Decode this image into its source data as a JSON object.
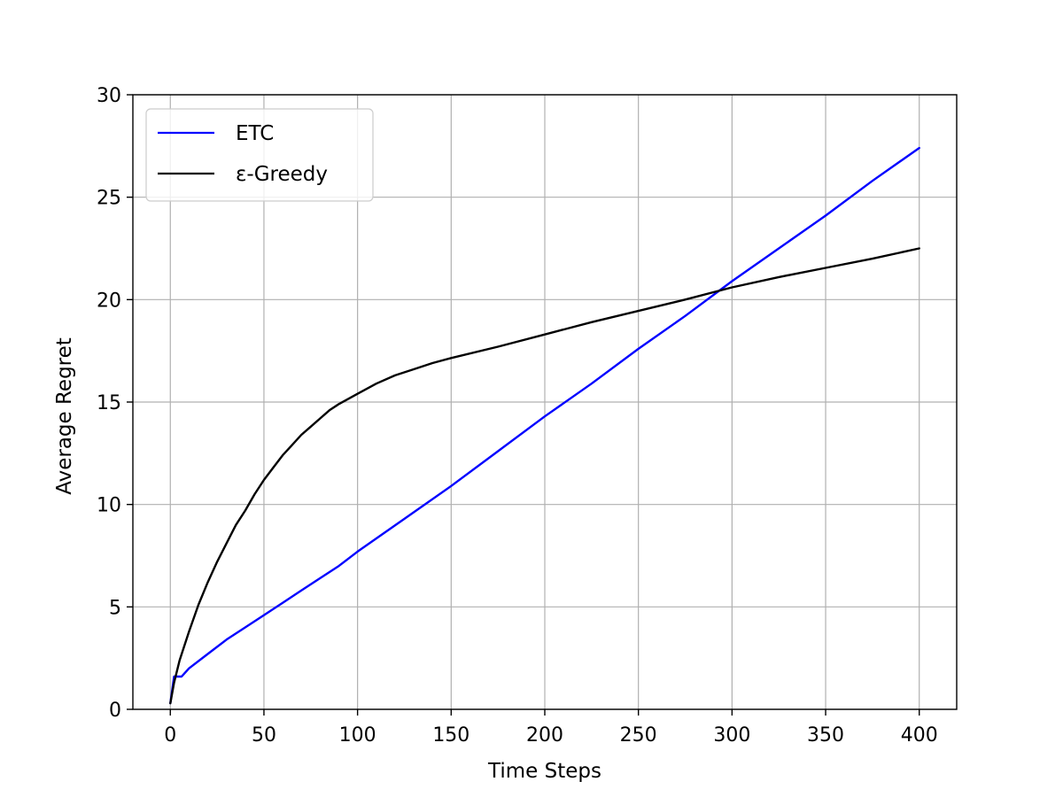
{
  "chart_data": {
    "type": "line",
    "title": "",
    "xlabel": "Time Steps",
    "ylabel": "Average Regret",
    "xlim": [
      -20,
      420
    ],
    "ylim": [
      0,
      30
    ],
    "xticks": [
      0,
      50,
      100,
      150,
      200,
      250,
      300,
      350,
      400
    ],
    "yticks": [
      0,
      5,
      10,
      15,
      20,
      25,
      30
    ],
    "grid": true,
    "legend_position": "top-left",
    "series": [
      {
        "name": "ETC",
        "color": "#0000ff",
        "points": [
          [
            0,
            0.3
          ],
          [
            2,
            1.6
          ],
          [
            6,
            1.6
          ],
          [
            10,
            2.0
          ],
          [
            20,
            2.7
          ],
          [
            30,
            3.4
          ],
          [
            40,
            4.0
          ],
          [
            50,
            4.6
          ],
          [
            60,
            5.2
          ],
          [
            70,
            5.8
          ],
          [
            80,
            6.4
          ],
          [
            90,
            7.0
          ],
          [
            100,
            7.7
          ],
          [
            125,
            9.3
          ],
          [
            150,
            10.9
          ],
          [
            175,
            12.6
          ],
          [
            200,
            14.3
          ],
          [
            225,
            15.9
          ],
          [
            250,
            17.6
          ],
          [
            275,
            19.2
          ],
          [
            300,
            20.9
          ],
          [
            325,
            22.5
          ],
          [
            350,
            24.1
          ],
          [
            375,
            25.8
          ],
          [
            400,
            27.4
          ]
        ]
      },
      {
        "name": "ε-Greedy",
        "color": "#000000",
        "points": [
          [
            0,
            0.3
          ],
          [
            2,
            1.3
          ],
          [
            5,
            2.4
          ],
          [
            10,
            3.8
          ],
          [
            15,
            5.1
          ],
          [
            20,
            6.2
          ],
          [
            25,
            7.2
          ],
          [
            30,
            8.1
          ],
          [
            35,
            9.0
          ],
          [
            40,
            9.7
          ],
          [
            45,
            10.5
          ],
          [
            50,
            11.2
          ],
          [
            55,
            11.8
          ],
          [
            60,
            12.4
          ],
          [
            65,
            12.9
          ],
          [
            70,
            13.4
          ],
          [
            75,
            13.8
          ],
          [
            80,
            14.2
          ],
          [
            85,
            14.6
          ],
          [
            90,
            14.9
          ],
          [
            100,
            15.4
          ],
          [
            110,
            15.9
          ],
          [
            120,
            16.3
          ],
          [
            130,
            16.6
          ],
          [
            140,
            16.9
          ],
          [
            150,
            17.15
          ],
          [
            175,
            17.7
          ],
          [
            200,
            18.3
          ],
          [
            225,
            18.9
          ],
          [
            250,
            19.45
          ],
          [
            275,
            20.0
          ],
          [
            300,
            20.6
          ],
          [
            325,
            21.1
          ],
          [
            350,
            21.55
          ],
          [
            375,
            22.0
          ],
          [
            400,
            22.5
          ]
        ]
      }
    ]
  }
}
